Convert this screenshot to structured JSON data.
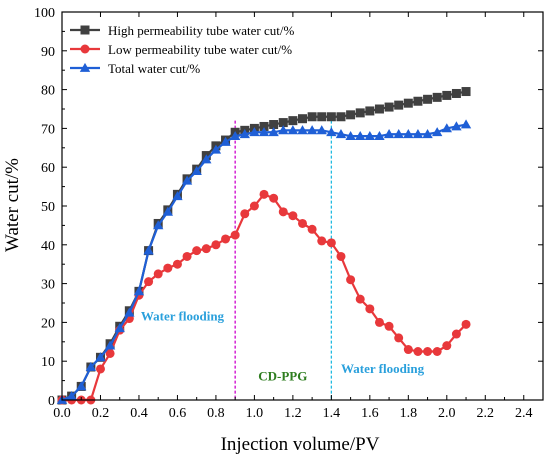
{
  "chart_data": {
    "type": "line",
    "xlabel": "Injection volume/PV",
    "ylabel": "Water cut/%",
    "xlim": [
      0,
      2.5
    ],
    "ylim": [
      0,
      100
    ],
    "xticks": [
      "0.0",
      "0.2",
      "0.4",
      "0.6",
      "0.8",
      "1.0",
      "1.2",
      "1.4",
      "1.6",
      "1.8",
      "2.0",
      "2.2",
      "2.4"
    ],
    "yticks": [
      "0",
      "10",
      "20",
      "30",
      "40",
      "50",
      "60",
      "70",
      "80",
      "90",
      "100"
    ],
    "legend_position": "top-left",
    "series": [
      {
        "name": "High permeability tube water cut/%",
        "color": "#404040",
        "marker": "square",
        "x": [
          0,
          0.05,
          0.1,
          0.15,
          0.2,
          0.25,
          0.3,
          0.35,
          0.4,
          0.45,
          0.5,
          0.55,
          0.6,
          0.65,
          0.7,
          0.75,
          0.8,
          0.85,
          0.9,
          0.95,
          1.0,
          1.05,
          1.1,
          1.15,
          1.2,
          1.25,
          1.3,
          1.35,
          1.4,
          1.45,
          1.5,
          1.55,
          1.6,
          1.65,
          1.7,
          1.75,
          1.8,
          1.85,
          1.9,
          1.95,
          2.0,
          2.05,
          2.1
        ],
        "y": [
          0,
          1,
          3.5,
          8.5,
          11,
          14.5,
          19,
          23,
          28,
          38.5,
          45.5,
          49,
          53,
          57,
          59.5,
          63,
          65.5,
          67,
          69,
          69.5,
          70,
          70.5,
          71,
          71.5,
          72,
          72.5,
          73,
          73,
          73,
          73,
          73.5,
          74,
          74.5,
          75,
          75.5,
          76,
          76.5,
          77,
          77.5,
          78,
          78.5,
          79,
          79.5
        ]
      },
      {
        "name": "Low permeability tube water cut/%",
        "color": "#e8383b",
        "marker": "circle",
        "x": [
          0,
          0.05,
          0.1,
          0.15,
          0.2,
          0.25,
          0.3,
          0.35,
          0.4,
          0.45,
          0.5,
          0.55,
          0.6,
          0.65,
          0.7,
          0.75,
          0.8,
          0.85,
          0.9,
          0.95,
          1.0,
          1.05,
          1.1,
          1.15,
          1.2,
          1.25,
          1.3,
          1.35,
          1.4,
          1.45,
          1.5,
          1.55,
          1.6,
          1.65,
          1.7,
          1.75,
          1.8,
          1.85,
          1.9,
          1.95,
          2.0,
          2.05,
          2.1
        ],
        "y": [
          0,
          0,
          0,
          0,
          8,
          12,
          18,
          21,
          27,
          30.5,
          32.5,
          34,
          35,
          37,
          38.5,
          39,
          40,
          41.5,
          42.5,
          48,
          50,
          53,
          52,
          48.5,
          47.5,
          45.5,
          44,
          41,
          40.5,
          37,
          31,
          26,
          23.5,
          20,
          19,
          16,
          13,
          12.5,
          12.5,
          12.5,
          14,
          17,
          19.5
        ]
      },
      {
        "name": "Total water cut/%",
        "color": "#1f5fd6",
        "marker": "triangle",
        "x": [
          0,
          0.05,
          0.1,
          0.15,
          0.2,
          0.25,
          0.3,
          0.35,
          0.4,
          0.45,
          0.5,
          0.55,
          0.6,
          0.65,
          0.7,
          0.75,
          0.8,
          0.85,
          0.9,
          0.95,
          1.0,
          1.05,
          1.1,
          1.15,
          1.2,
          1.25,
          1.3,
          1.35,
          1.4,
          1.45,
          1.5,
          1.55,
          1.6,
          1.65,
          1.7,
          1.75,
          1.8,
          1.85,
          1.9,
          1.95,
          2.0,
          2.05,
          2.1
        ],
        "y": [
          0,
          1,
          3.5,
          8.5,
          11,
          14,
          18.5,
          22.5,
          28,
          38.5,
          45,
          48.5,
          52.5,
          56.5,
          59,
          62,
          64.5,
          66.5,
          68,
          68.5,
          69,
          69,
          69,
          69.5,
          69.5,
          69.5,
          69.5,
          69.5,
          69,
          68.5,
          68,
          68,
          68,
          68,
          68.5,
          68.5,
          68.5,
          68.5,
          68.5,
          69,
          70,
          70.5,
          71
        ]
      }
    ],
    "vlines": [
      {
        "x": 0.9,
        "color": "#cc00cc"
      },
      {
        "x": 1.4,
        "color": "#22bbe0"
      }
    ],
    "annotations": [
      {
        "text": "Water flooding",
        "x": 0.41,
        "y": 20.5,
        "color": "#2aa0dc"
      },
      {
        "text": "CD-PPG",
        "x": 1.02,
        "y": 5,
        "color": "#2e7d1f"
      },
      {
        "text": "Water flooding",
        "x": 1.45,
        "y": 7,
        "color": "#2aa0dc"
      }
    ]
  }
}
